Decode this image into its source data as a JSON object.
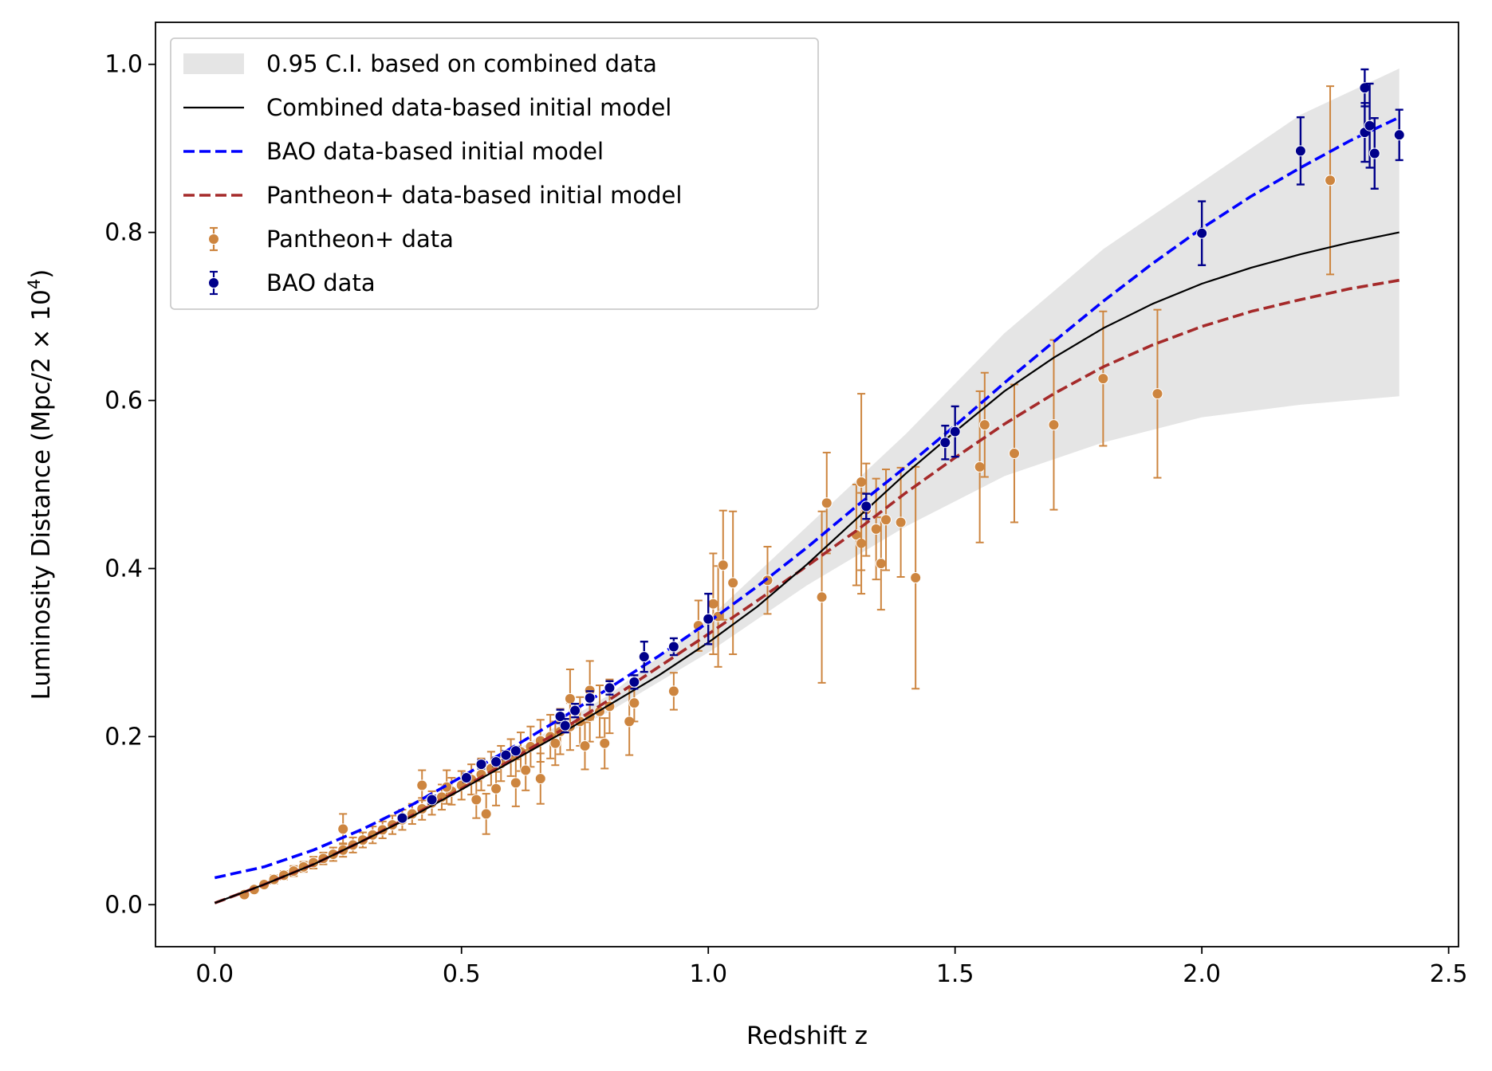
{
  "chart_data": {
    "type": "scatter",
    "title": "",
    "xlabel": "Redshift z",
    "ylabel": "Luminosity Distance (Mpc/2 × 10",
    "ylabel_sup": "4",
    "ylabel_close": ")",
    "xlim": [
      -0.12,
      2.52
    ],
    "ylim": [
      -0.05,
      1.05
    ],
    "xticks": [
      0.0,
      0.5,
      1.0,
      1.5,
      2.0,
      2.5
    ],
    "xtick_labels": [
      "0.0",
      "0.5",
      "1.0",
      "1.5",
      "2.0",
      "2.5"
    ],
    "yticks": [
      0.0,
      0.2,
      0.4,
      0.6,
      0.8,
      1.0
    ],
    "ytick_labels": [
      "0.0",
      "0.2",
      "0.4",
      "0.6",
      "0.8",
      "1.0"
    ],
    "legend_position": "top-left",
    "colors": {
      "ci_band": "#e5e5e5",
      "combined": "#000000",
      "bao_model": "#0000ff",
      "pantheon_model": "#a52a2a",
      "pantheon_data": "#cd853f",
      "bao_data": "#00008b"
    },
    "legend": [
      {
        "key": "ci",
        "label": "0.95 C.I. based on combined data"
      },
      {
        "key": "combined",
        "label": "Combined data-based initial model"
      },
      {
        "key": "bao_model",
        "label": "BAO data-based initial model"
      },
      {
        "key": "pantheon_model",
        "label": "Pantheon+ data-based initial model"
      },
      {
        "key": "pantheon_data",
        "label": "Pantheon+ data"
      },
      {
        "key": "bao_data",
        "label": "BAO data"
      }
    ],
    "ci_band": {
      "x": [
        0.0,
        0.2,
        0.4,
        0.6,
        0.8,
        1.0,
        1.2,
        1.4,
        1.6,
        1.8,
        2.0,
        2.2,
        2.4
      ],
      "lower": [
        0.0,
        0.05,
        0.11,
        0.17,
        0.23,
        0.3,
        0.38,
        0.45,
        0.51,
        0.55,
        0.58,
        0.595,
        0.605
      ],
      "upper": [
        0.0,
        0.05,
        0.11,
        0.18,
        0.25,
        0.34,
        0.45,
        0.56,
        0.68,
        0.78,
        0.86,
        0.94,
        0.995
      ]
    },
    "series": [
      {
        "name": "Combined data-based initial model",
        "key": "combined",
        "x": [
          0.0,
          0.1,
          0.2,
          0.3,
          0.4,
          0.5,
          0.6,
          0.7,
          0.8,
          0.9,
          1.0,
          1.1,
          1.2,
          1.3,
          1.4,
          1.5,
          1.6,
          1.7,
          1.8,
          1.9,
          2.0,
          2.1,
          2.2,
          2.3,
          2.4
        ],
        "y": [
          0.002,
          0.024,
          0.048,
          0.076,
          0.105,
          0.137,
          0.17,
          0.203,
          0.238,
          0.273,
          0.312,
          0.355,
          0.405,
          0.459,
          0.513,
          0.563,
          0.611,
          0.651,
          0.686,
          0.715,
          0.739,
          0.758,
          0.774,
          0.788,
          0.8
        ]
      },
      {
        "name": "BAO data-based initial model",
        "key": "bao_model",
        "x": [
          0.0,
          0.1,
          0.2,
          0.3,
          0.4,
          0.5,
          0.6,
          0.7,
          0.8,
          0.9,
          1.0,
          1.1,
          1.2,
          1.3,
          1.4,
          1.5,
          1.6,
          1.7,
          1.8,
          1.9,
          2.0,
          2.1,
          2.2,
          2.3,
          2.4
        ],
        "y": [
          0.032,
          0.045,
          0.065,
          0.09,
          0.119,
          0.152,
          0.186,
          0.221,
          0.258,
          0.296,
          0.336,
          0.379,
          0.425,
          0.474,
          0.521,
          0.57,
          0.621,
          0.67,
          0.718,
          0.763,
          0.805,
          0.843,
          0.877,
          0.909,
          0.937
        ]
      },
      {
        "name": "Pantheon+ data-based initial model",
        "key": "pantheon_model",
        "x": [
          0.0,
          0.1,
          0.2,
          0.3,
          0.4,
          0.5,
          0.6,
          0.7,
          0.8,
          0.9,
          1.0,
          1.1,
          1.2,
          1.3,
          1.4,
          1.5,
          1.6,
          1.7,
          1.8,
          1.9,
          2.0,
          2.1,
          2.2,
          2.3,
          2.4
        ],
        "y": [
          0.002,
          0.024,
          0.048,
          0.076,
          0.106,
          0.138,
          0.172,
          0.207,
          0.244,
          0.283,
          0.322,
          0.362,
          0.403,
          0.445,
          0.49,
          0.532,
          0.572,
          0.608,
          0.64,
          0.666,
          0.688,
          0.706,
          0.72,
          0.733,
          0.743
        ]
      }
    ],
    "pantheon_data": {
      "name": "Pantheon+ data",
      "x": [
        0.06,
        0.08,
        0.1,
        0.12,
        0.14,
        0.16,
        0.18,
        0.2,
        0.22,
        0.24,
        0.26,
        0.28,
        0.3,
        0.32,
        0.34,
        0.36,
        0.38,
        0.4,
        0.42,
        0.44,
        0.46,
        0.48,
        0.5,
        0.52,
        0.54,
        0.56,
        0.58,
        0.6,
        0.62,
        0.64,
        0.66,
        0.68,
        0.7,
        0.72,
        0.74,
        0.76,
        0.78,
        0.8,
        0.42,
        0.47,
        0.53,
        0.57,
        0.63,
        0.69,
        0.75,
        0.79,
        0.84,
        0.85,
        0.93,
        0.98,
        1.01,
        1.02,
        1.03,
        1.05,
        1.12,
        1.23,
        1.24,
        1.3,
        1.31,
        1.31,
        1.32,
        1.34,
        1.35,
        1.36,
        1.39,
        1.42,
        1.55,
        1.56,
        1.62,
        1.7,
        1.8,
        1.91,
        2.26,
        0.26,
        0.55,
        0.61,
        0.66,
        0.72,
        0.76
      ],
      "y": [
        0.012,
        0.018,
        0.024,
        0.03,
        0.035,
        0.04,
        0.045,
        0.05,
        0.055,
        0.06,
        0.065,
        0.071,
        0.077,
        0.083,
        0.089,
        0.095,
        0.101,
        0.108,
        0.114,
        0.121,
        0.128,
        0.135,
        0.142,
        0.149,
        0.155,
        0.162,
        0.168,
        0.175,
        0.182,
        0.188,
        0.195,
        0.2,
        0.206,
        0.212,
        0.218,
        0.224,
        0.23,
        0.236,
        0.142,
        0.14,
        0.125,
        0.138,
        0.16,
        0.192,
        0.189,
        0.192,
        0.218,
        0.24,
        0.254,
        0.332,
        0.358,
        0.343,
        0.404,
        0.383,
        0.386,
        0.366,
        0.478,
        0.44,
        0.43,
        0.503,
        0.47,
        0.447,
        0.406,
        0.458,
        0.455,
        0.389,
        0.521,
        0.571,
        0.537,
        0.571,
        0.626,
        0.608,
        0.862,
        0.09,
        0.108,
        0.145,
        0.15,
        0.245,
        0.255
      ],
      "err": [
        0.003,
        0.004,
        0.004,
        0.005,
        0.005,
        0.006,
        0.006,
        0.007,
        0.007,
        0.008,
        0.008,
        0.009,
        0.009,
        0.01,
        0.01,
        0.011,
        0.012,
        0.012,
        0.013,
        0.014,
        0.015,
        0.016,
        0.017,
        0.018,
        0.019,
        0.02,
        0.021,
        0.022,
        0.023,
        0.024,
        0.025,
        0.026,
        0.027,
        0.028,
        0.029,
        0.03,
        0.031,
        0.032,
        0.018,
        0.02,
        0.022,
        0.02,
        0.024,
        0.026,
        0.028,
        0.03,
        0.04,
        0.022,
        0.022,
        0.03,
        0.06,
        0.06,
        0.065,
        0.085,
        0.04,
        0.102,
        0.06,
        0.06,
        0.06,
        0.105,
        0.055,
        0.06,
        0.055,
        0.06,
        0.065,
        0.132,
        0.09,
        0.062,
        0.082,
        0.101,
        0.08,
        0.1,
        0.112,
        0.018,
        0.024,
        0.028,
        0.03,
        0.035,
        0.035
      ]
    },
    "bao_data": {
      "name": "BAO data",
      "x": [
        0.38,
        0.44,
        0.51,
        0.54,
        0.57,
        0.59,
        0.61,
        0.7,
        0.71,
        0.73,
        0.76,
        0.8,
        0.85,
        0.87,
        0.93,
        1.0,
        1.32,
        1.48,
        1.5,
        2.0,
        2.2,
        2.33,
        2.33,
        2.34,
        2.35,
        2.4
      ],
      "y": [
        0.103,
        0.125,
        0.151,
        0.167,
        0.17,
        0.178,
        0.183,
        0.224,
        0.213,
        0.231,
        0.246,
        0.258,
        0.265,
        0.295,
        0.307,
        0.34,
        0.474,
        0.55,
        0.563,
        0.799,
        0.897,
        0.972,
        0.919,
        0.927,
        0.894,
        0.916
      ],
      "err": [
        0.004,
        0.005,
        0.005,
        0.005,
        0.005,
        0.005,
        0.005,
        0.008,
        0.008,
        0.008,
        0.008,
        0.008,
        0.008,
        0.018,
        0.01,
        0.03,
        0.015,
        0.02,
        0.03,
        0.038,
        0.04,
        0.022,
        0.035,
        0.05,
        0.042,
        0.03
      ]
    }
  }
}
